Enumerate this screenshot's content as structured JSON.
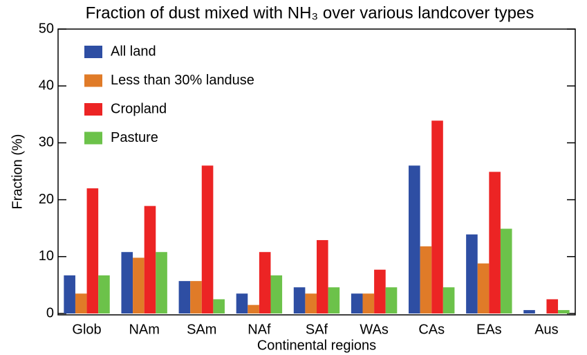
{
  "chart_data": {
    "type": "bar",
    "title": "Fraction of dust mixed with NH₃ over various landcover types",
    "x_label": "Continental regions",
    "y_label": "Fraction (%)",
    "categories": [
      "Glob",
      "NAm",
      "SAm",
      "NAf",
      "SAf",
      "WAs",
      "CAs",
      "EAs",
      "Aus"
    ],
    "series": [
      {
        "name": "All land",
        "color": "#2e4ea3",
        "values": [
          6.7,
          10.8,
          5.7,
          3.5,
          4.6,
          3.5,
          26,
          13.9,
          0.6
        ]
      },
      {
        "name": "Less than 30% landuse",
        "color": "#e07b28",
        "values": [
          3.5,
          9.8,
          5.7,
          1.5,
          3.5,
          3.5,
          11.8,
          8.8,
          0
        ]
      },
      {
        "name": "Cropland",
        "color": "#ec2424",
        "values": [
          22,
          18.9,
          26,
          10.8,
          12.9,
          7.7,
          33.9,
          24.9,
          2.5
        ]
      },
      {
        "name": "Pasture",
        "color": "#6cc24a",
        "values": [
          6.7,
          10.8,
          2.5,
          6.7,
          4.6,
          4.6,
          4.6,
          14.9,
          0.6
        ]
      }
    ],
    "ylim": [
      0,
      50
    ],
    "yticks": [
      0,
      10,
      20,
      30,
      40,
      50
    ],
    "legend": "upper-left"
  }
}
